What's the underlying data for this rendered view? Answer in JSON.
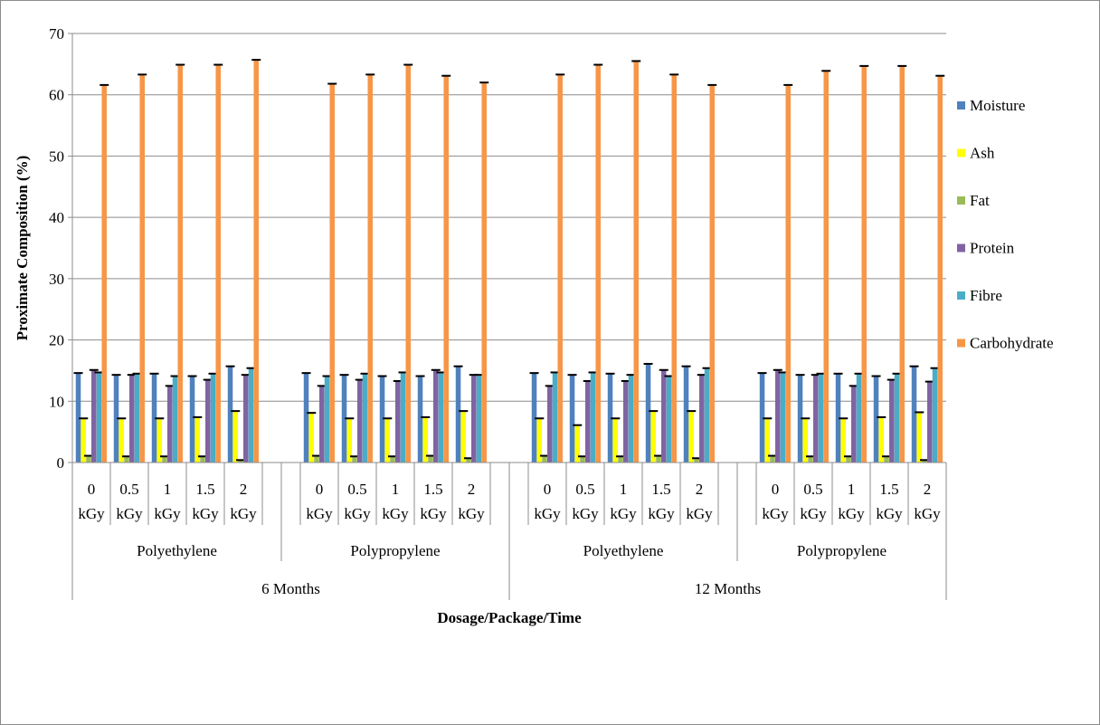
{
  "chart_data": {
    "type": "bar",
    "title": "",
    "ylabel": "Proximate Composition (%)",
    "xlabel": "Dosage/Package/Time",
    "ylim": [
      0,
      70
    ],
    "yticks": [
      0,
      10,
      20,
      30,
      40,
      50,
      60,
      70
    ],
    "grid": true,
    "legend_position": "right",
    "x_levels": {
      "dosage": [
        "0 kGy",
        "0.5 kGy",
        "1 kGy",
        "1.5 kGy",
        "2 kGy"
      ],
      "package": [
        "Polyethylene",
        "Polypropylene",
        "Polyethylene",
        "Polypropylene"
      ],
      "time": [
        "6 Months",
        "12 Months"
      ]
    },
    "categories": [
      "0 kGy",
      "0.5 kGy",
      "1 kGy",
      "1.5 kGy",
      "2 kGy",
      "0 kGy",
      "0.5 kGy",
      "1 kGy",
      "1.5 kGy",
      "2 kGy",
      "0 kGy",
      "0.5 kGy",
      "1 kGy",
      "1.5 kGy",
      "2 kGy",
      "0 kGy",
      "0.5 kGy",
      "1 kGy",
      "1.5 kGy",
      "2 kGy"
    ],
    "series": [
      {
        "name": "Moisture",
        "color": "#4f81bd",
        "values": [
          14.6,
          14.3,
          14.5,
          14.1,
          15.7,
          14.6,
          14.3,
          14.1,
          14.1,
          15.7,
          14.6,
          14.3,
          14.5,
          16.1,
          15.7,
          14.6,
          14.3,
          14.5,
          14.1,
          15.7
        ]
      },
      {
        "name": "Ash",
        "color": "#ffff00",
        "values": [
          7.2,
          7.2,
          7.2,
          7.4,
          8.4,
          8.1,
          7.2,
          7.2,
          7.4,
          8.4,
          7.2,
          6.1,
          7.2,
          8.4,
          8.4,
          7.2,
          7.2,
          7.2,
          7.4,
          8.2
        ]
      },
      {
        "name": "Fat",
        "color": "#9bbb59",
        "values": [
          1.1,
          1.0,
          1.0,
          1.0,
          0.4,
          1.1,
          1.0,
          1.0,
          1.1,
          0.7,
          1.1,
          1.0,
          1.0,
          1.1,
          0.7,
          1.1,
          1.0,
          1.0,
          1.0,
          0.4
        ]
      },
      {
        "name": "Protein",
        "color": "#8064a2",
        "values": [
          15.1,
          14.3,
          12.5,
          13.5,
          14.3,
          12.5,
          13.5,
          13.3,
          15.1,
          14.3,
          12.5,
          13.3,
          13.3,
          15.1,
          14.3,
          15.1,
          14.3,
          12.5,
          13.5,
          13.2
        ]
      },
      {
        "name": "Fibre",
        "color": "#4bacc6",
        "values": [
          14.7,
          14.5,
          14.1,
          14.5,
          15.4,
          14.1,
          14.5,
          14.7,
          14.7,
          14.3,
          14.7,
          14.7,
          14.3,
          14.1,
          15.4,
          14.7,
          14.5,
          14.5,
          14.5,
          15.4
        ]
      },
      {
        "name": "Carbohydrate",
        "color": "#f79646",
        "values": [
          61.6,
          63.3,
          64.9,
          64.9,
          65.7,
          61.8,
          63.3,
          64.9,
          63.1,
          62.0,
          63.3,
          64.9,
          65.5,
          63.3,
          61.6,
          61.6,
          63.9,
          64.7,
          64.7,
          63.1
        ]
      }
    ]
  }
}
